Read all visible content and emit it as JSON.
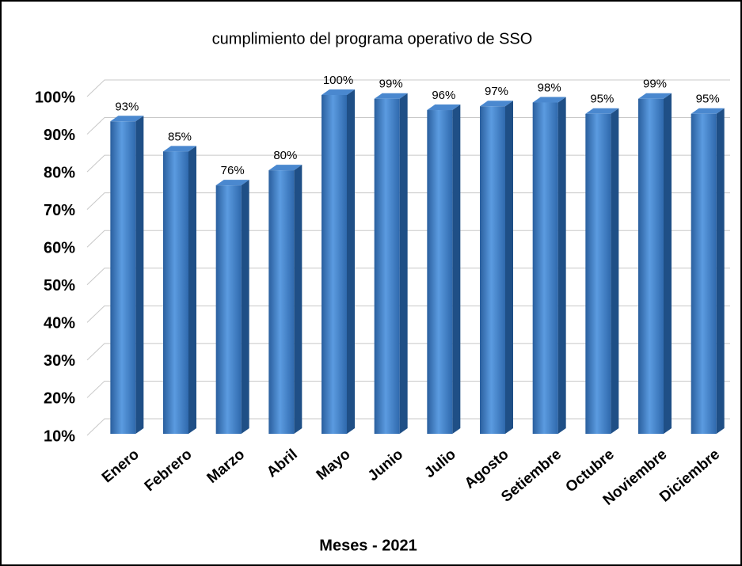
{
  "chart_data": {
    "type": "bar",
    "title": "cumplimiento  del programa  operativo  de SSO",
    "x_label": "Meses - 2021",
    "categories": [
      "Enero",
      "Febrero",
      "Marzo",
      "Abril",
      "Mayo",
      "Junio",
      "Julio",
      "Agosto",
      "Setiembre",
      "Octubre",
      "Noviembre",
      "Diciembre"
    ],
    "values": [
      93,
      85,
      76,
      80,
      100,
      99,
      96,
      97,
      98,
      95,
      99,
      95
    ],
    "value_labels": [
      "93%",
      "85%",
      "76%",
      "80%",
      "100%",
      "99%",
      "96%",
      "97%",
      "98%",
      "95%",
      "99%",
      "95%"
    ],
    "color": "#3f7fc6",
    "ylim": [
      10,
      100
    ],
    "yticks": [
      {
        "value": 10,
        "label": "10%"
      },
      {
        "value": 20,
        "label": "20%"
      },
      {
        "value": 30,
        "label": "30%"
      },
      {
        "value": 40,
        "label": "40%"
      },
      {
        "value": 50,
        "label": "50%"
      },
      {
        "value": 60,
        "label": "60%"
      },
      {
        "value": 70,
        "label": "70%"
      },
      {
        "value": 80,
        "label": "80%"
      },
      {
        "value": 90,
        "label": "90%"
      },
      {
        "value": 100,
        "label": "100%"
      }
    ],
    "grid": true
  }
}
